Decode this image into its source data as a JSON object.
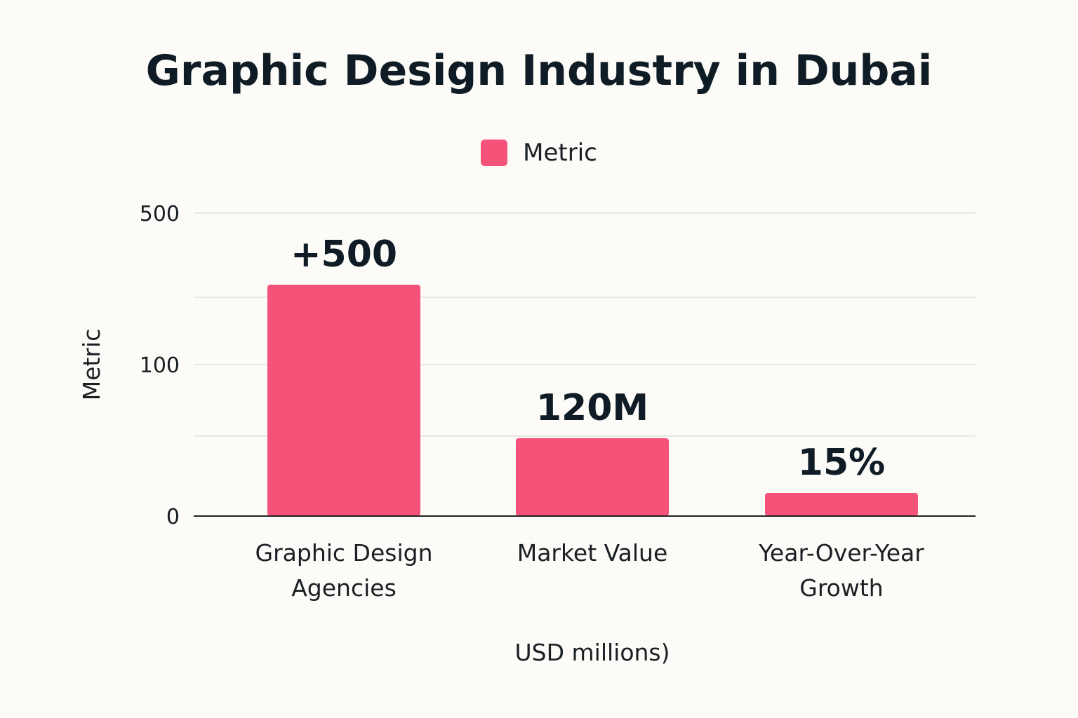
{
  "chart_data": {
    "type": "bar",
    "title": "Graphic Design Industry in Dubai",
    "legend": {
      "entries": [
        "Metric"
      ],
      "placement": "top-center"
    },
    "xlabel": "USD millions)",
    "ylabel": "Metric",
    "categories": [
      [
        "Graphic Design",
        "Agencies"
      ],
      [
        "Market Value"
      ],
      [
        "Year-Over-Year",
        "Growth"
      ]
    ],
    "series": [
      {
        "name": "Metric",
        "values": [
          500,
          120,
          15
        ]
      }
    ],
    "data_labels": [
      "+500",
      "120M",
      "15%"
    ],
    "y_ticks": [
      "0",
      "100",
      "500"
    ],
    "grid": true,
    "colors": {
      "bar": "#f5527a",
      "axis": "#222222",
      "grid": "#e3e1dc"
    }
  }
}
